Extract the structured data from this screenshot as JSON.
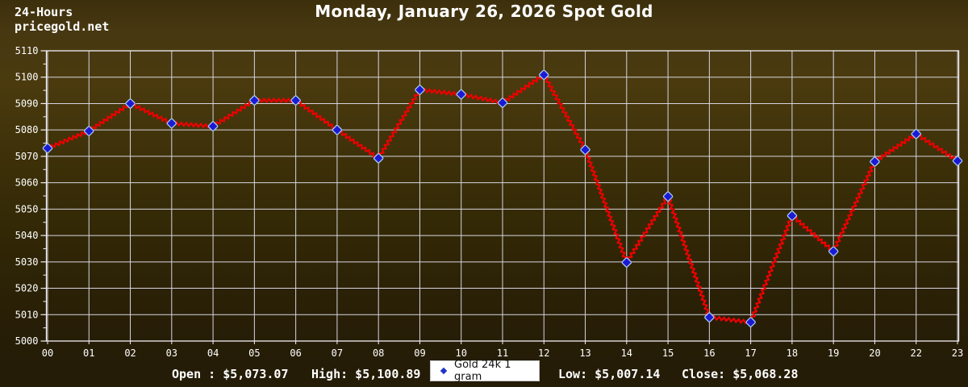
{
  "header": {
    "brand_line1": "24-Hours",
    "brand_line2": "pricegold.net",
    "title": "Monday, January 26, 2026 Spot Gold"
  },
  "chart_data": {
    "type": "line",
    "title": "Monday, January 26, 2026 Spot Gold",
    "x_labels": [
      "00",
      "01",
      "02",
      "03",
      "04",
      "05",
      "06",
      "07",
      "08",
      "09",
      "10",
      "11",
      "12",
      "13",
      "14",
      "15",
      "16",
      "17",
      "18",
      "19",
      "20",
      "22",
      "23"
    ],
    "series": [
      {
        "name": "Gold 24k 1 gram",
        "values": [
          5073.07,
          5079.6,
          5090.0,
          5082.5,
          5081.4,
          5091.2,
          5091.2,
          5080.0,
          5069.3,
          5095.2,
          5093.5,
          5090.3,
          5100.89,
          5072.5,
          5029.8,
          5054.8,
          5009.0,
          5007.14,
          5047.5,
          5034.0,
          5068.0,
          5078.5,
          5068.28
        ]
      }
    ],
    "ylim": [
      5000,
      5110
    ],
    "y_ticks": [
      5000,
      5010,
      5020,
      5030,
      5040,
      5050,
      5060,
      5070,
      5080,
      5090,
      5100,
      5110
    ],
    "y_minor_step": 5,
    "grid": true,
    "legend_position": "bottom-center",
    "note_missing_hour": "21",
    "colors": {
      "line": "#ee0000",
      "marker_fill": "#1a1ad4",
      "marker_edge": "#a8c8ec",
      "grid": "#d8d5e0",
      "axis_text": "#ffffff",
      "spine": "#f2f0f7"
    }
  },
  "legend": {
    "label": "Gold 24k 1 gram",
    "marker": "blue-diamond"
  },
  "footer": {
    "open_text": "Open : $5,073.07",
    "high_text": "High: $5,100.89",
    "low_text": "Low: $5,007.14",
    "close_text": "Close: $5,068.28"
  }
}
